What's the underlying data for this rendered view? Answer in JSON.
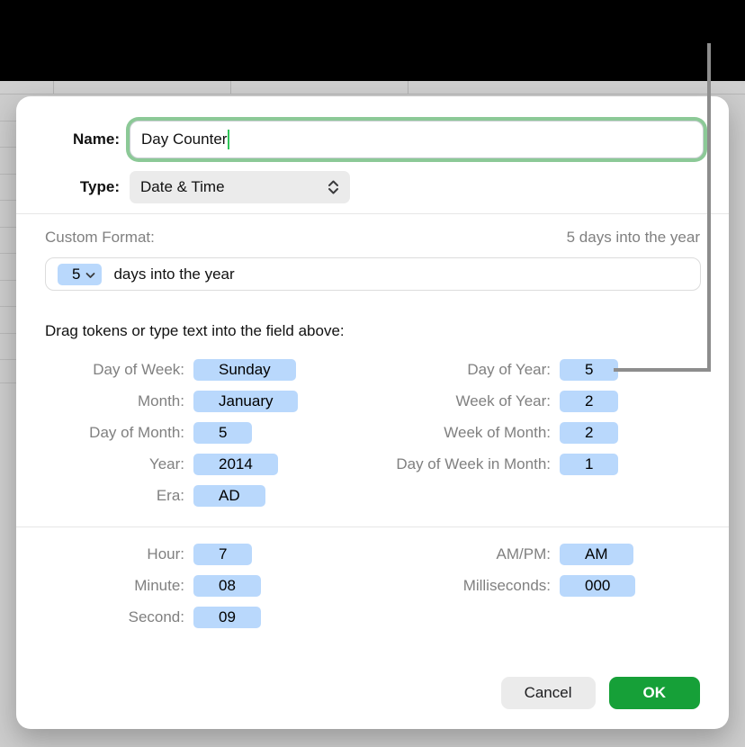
{
  "dialog": {
    "name_label": "Name:",
    "name_value": "Day Counter",
    "type_label": "Type:",
    "type_value": "Date & Time",
    "custom_format_label": "Custom Format:",
    "preview_text": "5 days into the year",
    "format_field": {
      "token_value": "5",
      "text_after": "days into the year"
    },
    "drag_hint": "Drag tokens or type text into the field above:",
    "date_tokens_left": [
      {
        "label": "Day of Week:",
        "value": "Sunday"
      },
      {
        "label": "Month:",
        "value": "January"
      },
      {
        "label": "Day of Month:",
        "value": "5"
      },
      {
        "label": "Year:",
        "value": "2014"
      },
      {
        "label": "Era:",
        "value": "AD"
      }
    ],
    "date_tokens_right": [
      {
        "label": "Day of Year:",
        "value": "5"
      },
      {
        "label": "Week of Year:",
        "value": "2"
      },
      {
        "label": "Week of Month:",
        "value": "2"
      },
      {
        "label": "Day of Week in Month:",
        "value": "1"
      }
    ],
    "time_tokens_left": [
      {
        "label": "Hour:",
        "value": "7"
      },
      {
        "label": "Minute:",
        "value": "08"
      },
      {
        "label": "Second:",
        "value": "09"
      }
    ],
    "time_tokens_right": [
      {
        "label": "AM/PM:",
        "value": "AM"
      },
      {
        "label": "Milliseconds:",
        "value": "000"
      }
    ],
    "cancel_label": "Cancel",
    "ok_label": "OK"
  },
  "colors": {
    "ok_button_green": "#16a038",
    "token_blue": "#b9d8fc",
    "focus_ring_green": "#8cc997",
    "caret_green": "#2fc558",
    "callout_gray": "#8d8d8d",
    "label_gray": "#808080",
    "background_gray": "#cdcdcd"
  }
}
